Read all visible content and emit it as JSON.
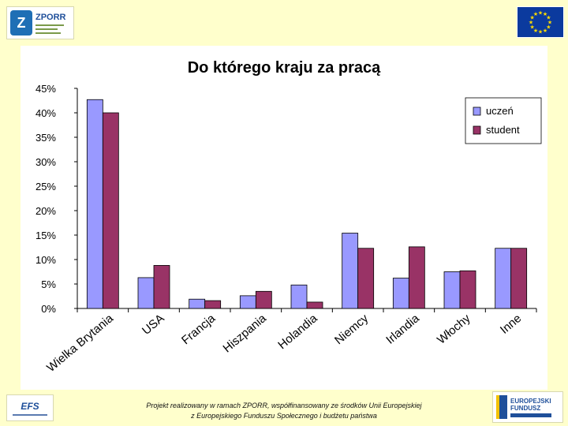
{
  "header": {
    "zporr_logo_text": "ZPORR"
  },
  "chart_data": {
    "type": "bar",
    "title": "Do którego kraju za pracą",
    "xlabel": "",
    "ylabel": "",
    "ylim": [
      0,
      45
    ],
    "y_ticks": [
      "0%",
      "5%",
      "10%",
      "15%",
      "20%",
      "25%",
      "30%",
      "35%",
      "40%",
      "45%"
    ],
    "y_tick_values": [
      0,
      5,
      10,
      15,
      20,
      25,
      30,
      35,
      40,
      45
    ],
    "grid": false,
    "legend_position": "top-right",
    "categories": [
      "Wielka Brytania",
      "USA",
      "Francja",
      "Hiszpania",
      "Holandia",
      "Niemcy",
      "Irlandia",
      "Włochy",
      "Inne"
    ],
    "series": [
      {
        "name": "uczeń",
        "color": "#9999ff",
        "values": [
          42.7,
          6.3,
          1.9,
          2.6,
          4.8,
          15.4,
          6.2,
          7.5,
          12.3
        ]
      },
      {
        "name": "student",
        "color": "#993366",
        "values": [
          40.0,
          8.8,
          1.6,
          3.5,
          1.3,
          12.3,
          12.6,
          7.7,
          12.3
        ]
      }
    ]
  },
  "footer": {
    "eps_logo_text": "EFS",
    "efs_logo_line1": "EUROPEJSKI",
    "efs_logo_line2": "FUNDUSZ",
    "line1": "Projekt realizowany w ramach ZPORR, współfinansowany ze środków Unii Europejskiej",
    "line2": "z Europejskiego Funduszu Społecznego i budżetu państwa"
  },
  "colors": {
    "background": "#ffffcc",
    "axis": "#000000",
    "eu_blue": "#0b3a9e",
    "eu_star": "#ffdd00"
  }
}
